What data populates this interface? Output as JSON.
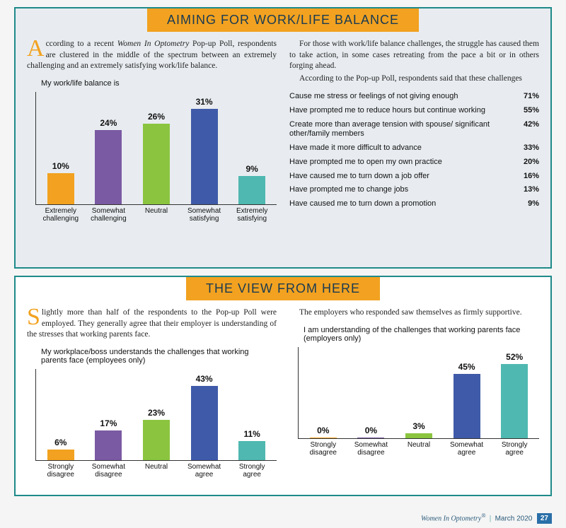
{
  "panel1": {
    "title": "AIMING FOR WORK/LIFE BALANCE",
    "dropcap": "A",
    "left_body_html": "ccording to a recent <em data-name=\"ital\">Women In Optometry</em> Pop-up Poll, respondents are clustered in the middle of the spectrum between an extremely challenging and an extremely satisfying work/life balance.",
    "chart": {
      "title": "My work/life balance is",
      "max": 31,
      "full_h": 135,
      "bars": [
        {
          "label": "Extremely challenging",
          "value": 10,
          "pct": "10%",
          "color": "#f2a220"
        },
        {
          "label": "Somewhat challenging",
          "value": 24,
          "pct": "24%",
          "color": "#7a5aa3"
        },
        {
          "label": "Neutral",
          "value": 26,
          "pct": "26%",
          "color": "#8bc53f"
        },
        {
          "label": "Somewhat satisfying",
          "value": 31,
          "pct": "31%",
          "color": "#3f5aa8"
        },
        {
          "label": "Extremely satisfying",
          "value": 9,
          "pct": "9%",
          "color": "#4fb8b0"
        }
      ]
    },
    "right_p1": "For those with work/life balance challenges, the struggle has caused them to take action, in some cases retreating from the pace a bit or in others forging ahead.",
    "right_p2": "According to the Pop-up Poll, respondents said that these challenges",
    "stats": [
      {
        "label": "Cause me stress or feelings of not giving enough",
        "pct": "71%"
      },
      {
        "label": "Have prompted me to reduce hours but continue working",
        "pct": "55%"
      },
      {
        "label": "Create more than average tension with spouse/ significant other/family members",
        "pct": "42%"
      },
      {
        "label": "Have made it more difficult to advance",
        "pct": "33%"
      },
      {
        "label": "Have prompted me to open my own practice",
        "pct": "20%"
      },
      {
        "label": "Have caused me to turn down a job offer",
        "pct": "16%"
      },
      {
        "label": "Have prompted me to change jobs",
        "pct": "13%"
      },
      {
        "label": "Have caused me to turn down a promotion",
        "pct": "9%"
      }
    ]
  },
  "panel2": {
    "title": "THE VIEW FROM HERE",
    "dropcap": "S",
    "left_body": "lightly more than half of the respondents to the Pop-up Poll were employed. They generally agree that their employer is understanding of the stresses that working parents face.",
    "chart_left": {
      "title": "My workplace/boss understands the challenges that working parents face (employees only)",
      "max": 43,
      "full_h": 105,
      "bars": [
        {
          "label": "Strongly disagree",
          "value": 6,
          "pct": "6%",
          "color": "#f2a220"
        },
        {
          "label": "Somewhat disagree",
          "value": 17,
          "pct": "17%",
          "color": "#7a5aa3"
        },
        {
          "label": "Neutral",
          "value": 23,
          "pct": "23%",
          "color": "#8bc53f"
        },
        {
          "label": "Somewhat agree",
          "value": 43,
          "pct": "43%",
          "color": "#3f5aa8"
        },
        {
          "label": "Strongly agree",
          "value": 11,
          "pct": "11%",
          "color": "#4fb8b0"
        }
      ]
    },
    "right_body": "The employers who responded saw themselves as firmly supportive.",
    "chart_right": {
      "title": "I am understanding of the challenges that working parents face (employers only)",
      "max": 52,
      "full_h": 105,
      "bars": [
        {
          "label": "Strongly disagree",
          "value": 0,
          "pct": "0%",
          "color": "#f2a220"
        },
        {
          "label": "Somewhat disagree",
          "value": 0,
          "pct": "0%",
          "color": "#7a5aa3"
        },
        {
          "label": "Neutral",
          "value": 3,
          "pct": "3%",
          "color": "#8bc53f"
        },
        {
          "label": "Somewhat agree",
          "value": 45,
          "pct": "45%",
          "color": "#3f5aa8"
        },
        {
          "label": "Strongly agree",
          "value": 52,
          "pct": "52%",
          "color": "#4fb8b0"
        }
      ]
    }
  },
  "footer": {
    "brand": "Women In Optometry",
    "reg": "®",
    "date": "March 2020",
    "page": "27"
  }
}
